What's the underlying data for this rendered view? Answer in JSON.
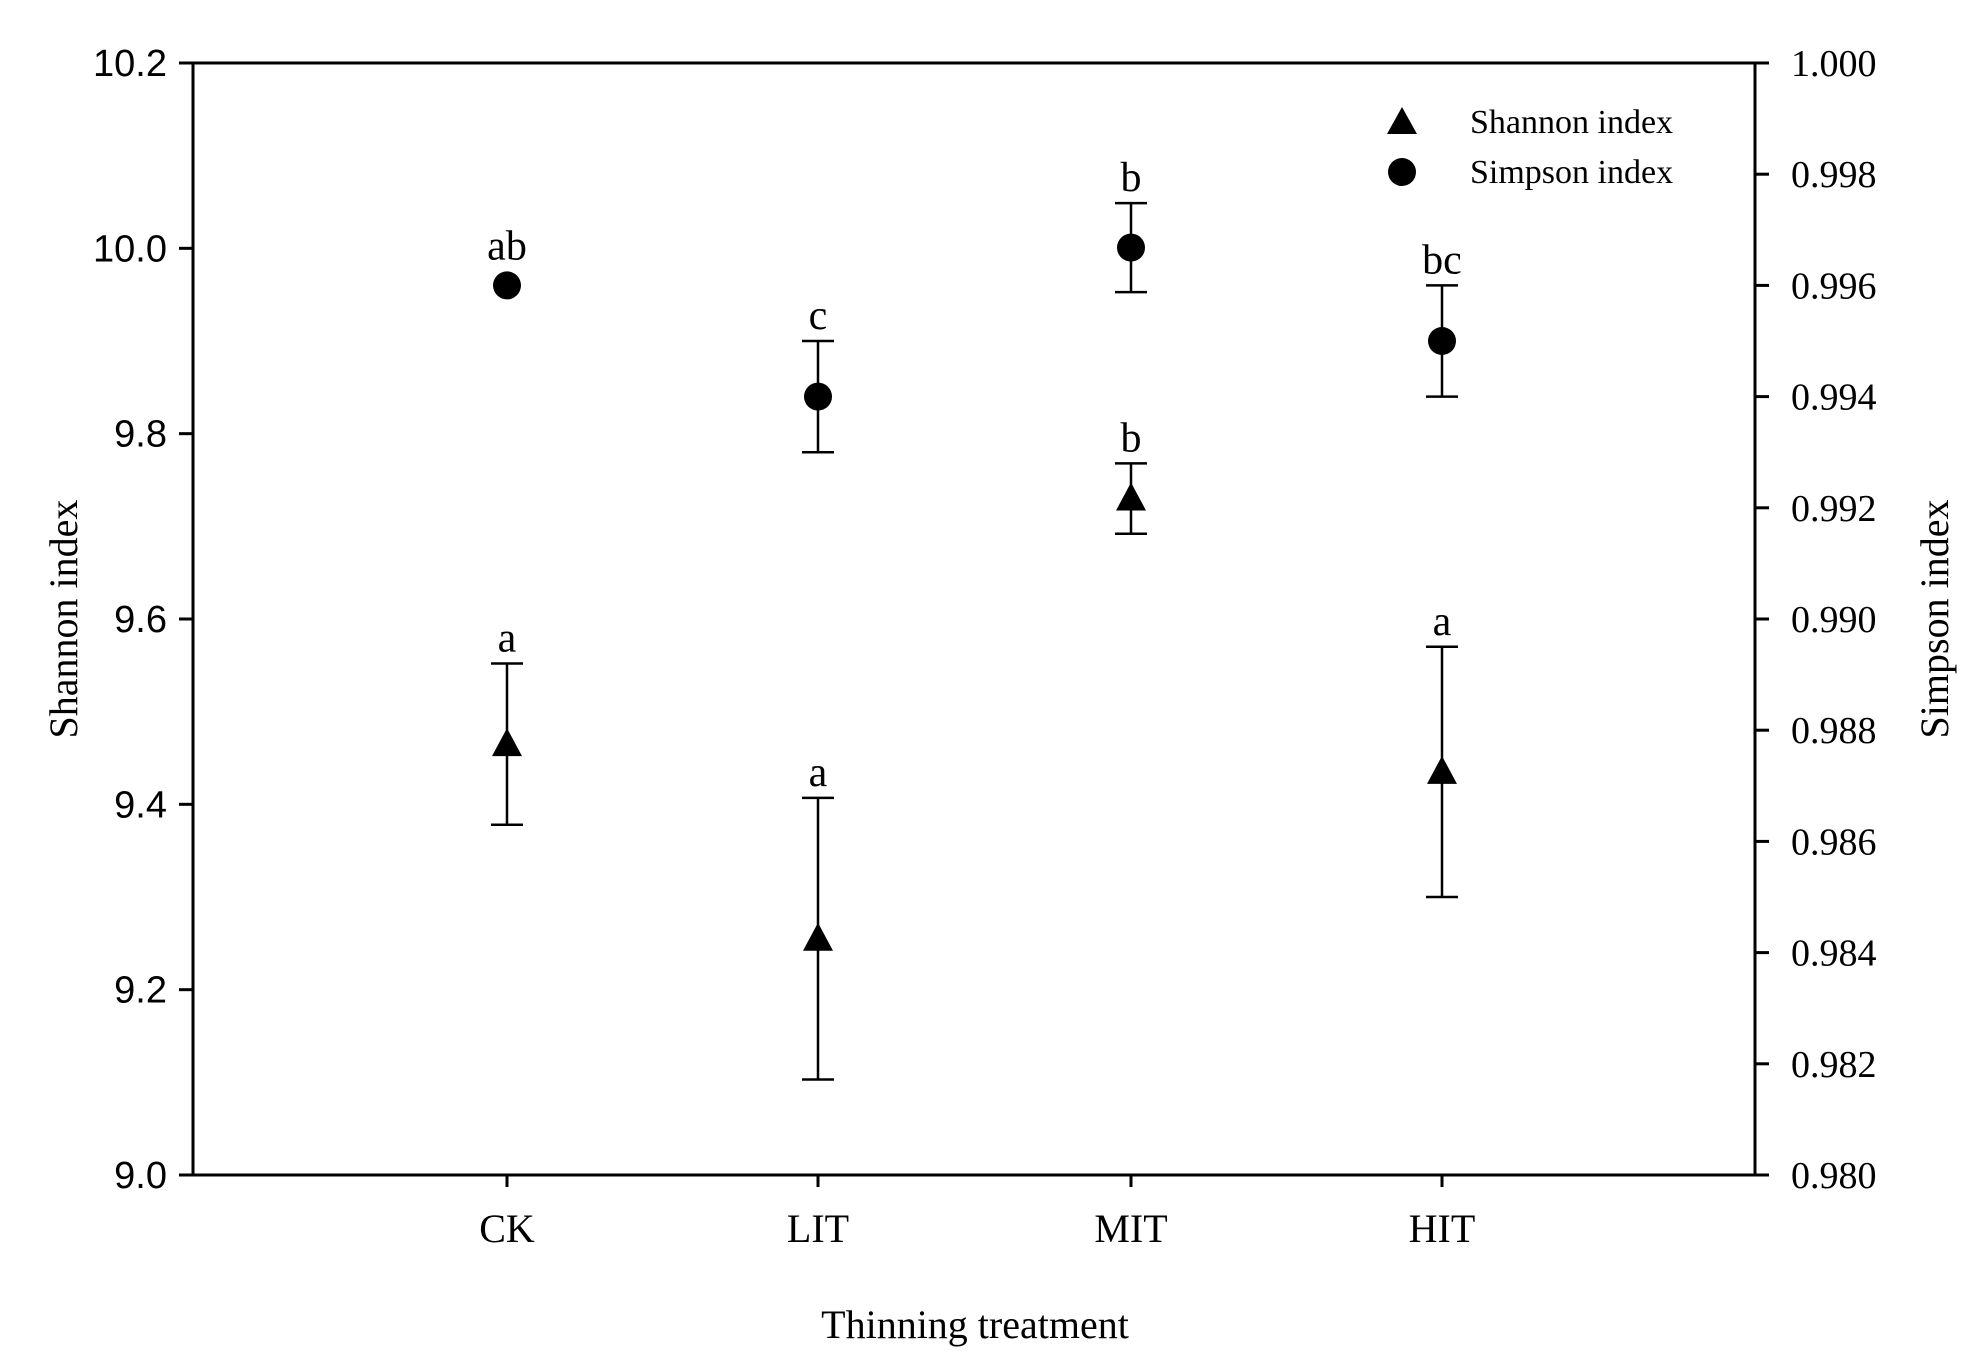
{
  "chart_data": {
    "type": "scatter",
    "xlabel": "Thinning treatment",
    "ylabel": "Shannon index",
    "y2label": "Simpson index",
    "categories": [
      "CK",
      "LIT",
      "MIT",
      "HIT"
    ],
    "ylim": [
      9.0,
      10.2
    ],
    "y2lim": [
      0.98,
      1.0
    ],
    "yticks": [
      "9.0",
      "9.2",
      "9.4",
      "9.6",
      "9.8",
      "10.0",
      "10.2"
    ],
    "y2ticks": [
      "0.980",
      "0.982",
      "0.984",
      "0.986",
      "0.988",
      "0.990",
      "0.992",
      "0.994",
      "0.996",
      "0.998",
      "1.000"
    ],
    "legend_position": "top-right",
    "series": [
      {
        "name": "Shannon index",
        "axis": "left",
        "marker": "triangle",
        "values": [
          9.465,
          9.255,
          9.73,
          9.435
        ],
        "errors": [
          0.087,
          0.152,
          0.038,
          0.135
        ],
        "labels": [
          "a",
          "a",
          "b",
          "a"
        ]
      },
      {
        "name": "Simpson index",
        "axis": "right",
        "marker": "circle",
        "values": [
          0.996,
          0.994,
          0.99668,
          0.995
        ],
        "errors": [
          0.0,
          0.001,
          0.0008,
          0.001
        ],
        "labels": [
          "ab",
          "c",
          "b",
          "bc"
        ]
      }
    ]
  }
}
